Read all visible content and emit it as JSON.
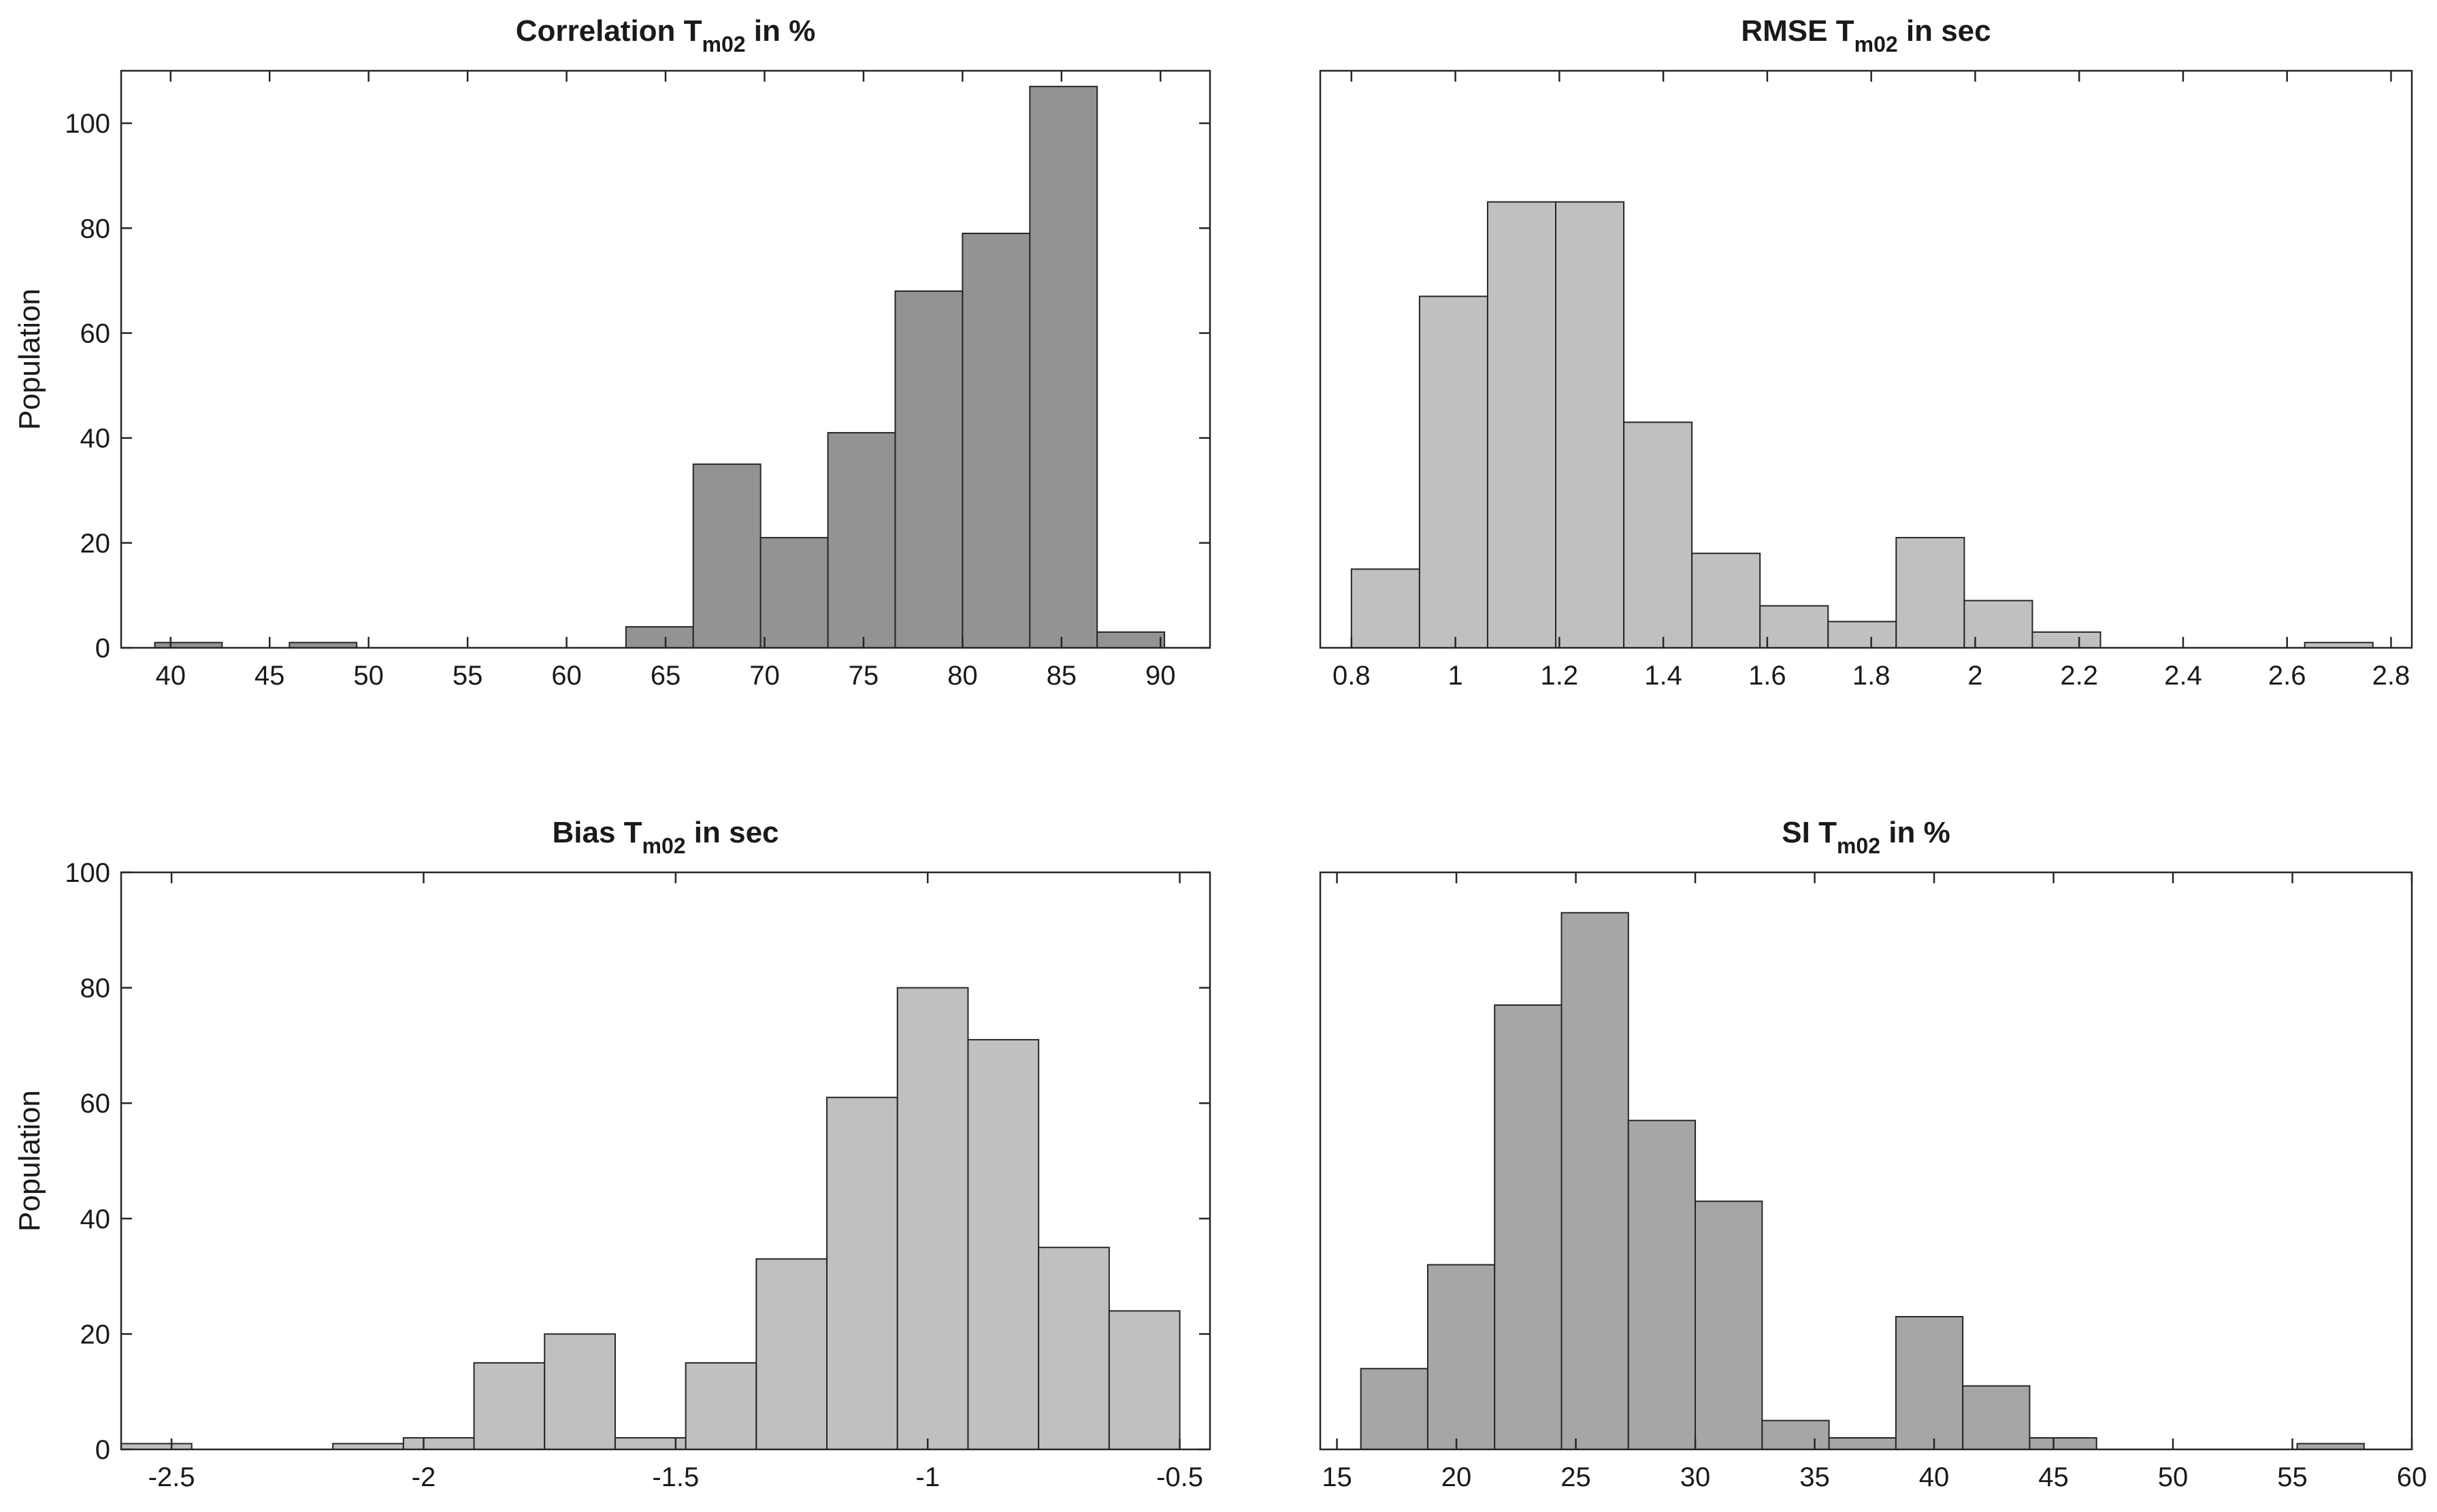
{
  "chart_data": [
    {
      "type": "bar",
      "title": {
        "prefix": "Correlation T",
        "subscript": "m02",
        "suffix": " in %"
      },
      "xlabel": "",
      "ylabel": "Population",
      "xlim": [
        37.5,
        92.5
      ],
      "ylim": [
        0,
        110
      ],
      "xticks": [
        "40",
        "45",
        "50",
        "55",
        "60",
        "65",
        "70",
        "75",
        "80",
        "85",
        "90"
      ],
      "yticks": [
        "0",
        "20",
        "40",
        "60",
        "80",
        "100"
      ],
      "bin_width": 3.4,
      "bin_edges": [
        39.2,
        42.6,
        46.0,
        49.4,
        52.8,
        56.2,
        59.6,
        63.0,
        66.4,
        69.8,
        73.2,
        76.6,
        80.0,
        83.4,
        86.8,
        90.2
      ],
      "values": [
        1,
        0,
        1,
        0,
        0,
        0,
        0,
        4,
        35,
        21,
        41,
        68,
        79,
        107,
        3
      ],
      "bar_color": "#939393"
    },
    {
      "type": "bar",
      "title": {
        "prefix": "RMSE T",
        "subscript": "m02",
        "suffix": " in sec"
      },
      "xlabel": "",
      "ylabel": "",
      "xlim": [
        0.74,
        2.84
      ],
      "ylim": [
        0,
        110
      ],
      "xticks": [
        "0.8",
        "1",
        "1.2",
        "1.4",
        "1.6",
        "1.8",
        "2",
        "2.2",
        "2.4",
        "2.6",
        "2.8"
      ],
      "yticks": [],
      "bin_width": 0.131,
      "bin_edges": [
        0.8,
        0.931,
        1.062,
        1.193,
        1.324,
        1.455,
        1.586,
        1.717,
        1.848,
        1.979,
        2.11,
        2.241,
        2.372,
        2.503,
        2.634,
        2.765
      ],
      "values": [
        15,
        67,
        85,
        85,
        43,
        18,
        8,
        5,
        21,
        9,
        3,
        0,
        0,
        0,
        1
      ],
      "bar_color": "#c0c0c0"
    },
    {
      "type": "bar",
      "title": {
        "prefix": "Bias T",
        "subscript": "m02",
        "suffix": " in sec"
      },
      "xlabel": "",
      "ylabel": "Population",
      "xlim": [
        -2.6,
        -0.44
      ],
      "ylim": [
        0,
        100
      ],
      "xticks": [
        "-2.5",
        "-2",
        "-1.5",
        "-1",
        "-0.5"
      ],
      "yticks": [
        "0",
        "20",
        "40",
        "60",
        "80",
        "100"
      ],
      "bin_width": 0.14,
      "bin_edges": [
        -2.6,
        -2.46,
        -2.32,
        -2.18,
        -2.04,
        -1.9,
        -1.76,
        -1.62,
        -1.48,
        -1.34,
        -1.2,
        -1.06,
        -0.92,
        -0.78,
        -0.64,
        -0.5
      ],
      "values": [
        1,
        0,
        0,
        1,
        2,
        15,
        20,
        2,
        15,
        33,
        61,
        80,
        71,
        35,
        24
      ],
      "bar_color": "#c0c0c0"
    },
    {
      "type": "bar",
      "title": {
        "prefix": "SI T",
        "subscript": "m02",
        "suffix": " in %"
      },
      "xlabel": "",
      "ylabel": "",
      "xlim": [
        14.3,
        60
      ],
      "ylim": [
        0,
        100
      ],
      "xticks": [
        "15",
        "20",
        "25",
        "30",
        "35",
        "40",
        "45",
        "50",
        "55",
        "60"
      ],
      "yticks": [],
      "bin_width": 2.8,
      "bin_edges": [
        16.0,
        18.8,
        21.6,
        24.4,
        27.2,
        30.0,
        32.8,
        35.6,
        38.4,
        41.2,
        44.0,
        46.8,
        49.6,
        52.4,
        55.2,
        58.0
      ],
      "values": [
        14,
        32,
        77,
        93,
        57,
        43,
        5,
        2,
        23,
        11,
        2,
        0,
        0,
        0,
        1
      ],
      "bar_color": "#a6a6a6"
    }
  ]
}
